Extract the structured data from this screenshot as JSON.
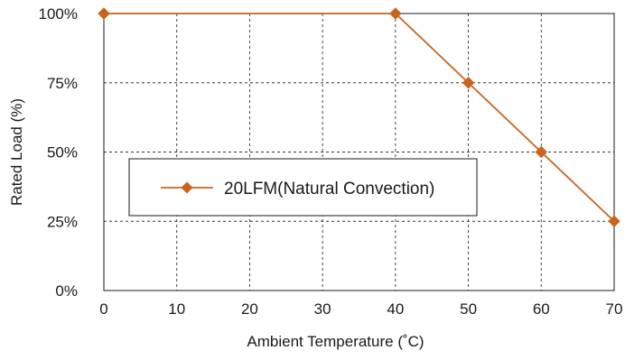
{
  "chart_data": {
    "type": "line",
    "title": "",
    "xlabel": "Ambient Temperature (˚C)",
    "ylabel": "Rated Load (%)",
    "xlim": [
      0,
      70
    ],
    "ylim": [
      0,
      100
    ],
    "x_ticks": [
      0,
      10,
      20,
      30,
      40,
      50,
      60,
      70
    ],
    "x_tick_labels": [
      "0",
      "10",
      "20",
      "30",
      "40",
      "50",
      "60",
      "70"
    ],
    "y_ticks": [
      0,
      25,
      50,
      75,
      100
    ],
    "y_tick_labels": [
      "0%",
      "25%",
      "50%",
      "75%",
      "100%"
    ],
    "grid": true,
    "legend_position": "center-left",
    "series": [
      {
        "name": "20LFM(Natural Convection)",
        "color": "#c8641e",
        "marker": "diamond",
        "points": [
          {
            "x": 0,
            "y": 100
          },
          {
            "x": 40,
            "y": 100
          },
          {
            "x": 50,
            "y": 75
          },
          {
            "x": 60,
            "y": 50
          },
          {
            "x": 70,
            "y": 25
          }
        ]
      }
    ]
  }
}
